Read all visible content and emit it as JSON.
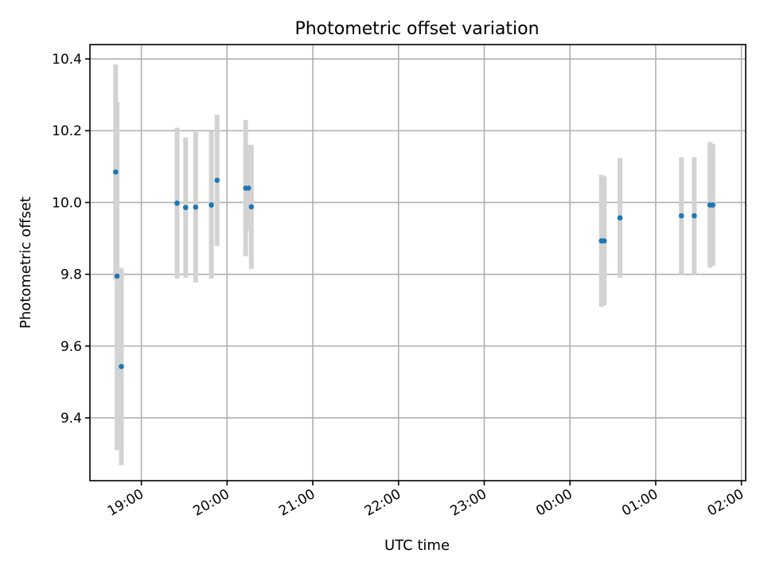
{
  "chart_data": {
    "type": "scatter",
    "title": "Photometric offset variation",
    "xlabel": "UTC time",
    "ylabel": "Photometric offset",
    "grid": true,
    "x_ticks": [
      "19:00",
      "20:00",
      "21:00",
      "22:00",
      "23:00",
      "00:00",
      "01:00",
      "02:00"
    ],
    "y_ticks": [
      "9.4",
      "9.6",
      "9.8",
      "10.0",
      "10.2",
      "10.4"
    ],
    "xlim": [
      "18:24",
      "02:03"
    ],
    "ylim": [
      9.225,
      10.44
    ],
    "colors": {
      "point": "#1f77b4",
      "errorbar": "#d3d3d3"
    },
    "points": [
      {
        "t": "18:42",
        "y": 10.085,
        "err": 0.3
      },
      {
        "t": "18:43",
        "y": 9.795,
        "err": 0.485
      },
      {
        "t": "18:46",
        "y": 9.543,
        "err": 0.275
      },
      {
        "t": "19:25",
        "y": 9.998,
        "err": 0.21
      },
      {
        "t": "19:31",
        "y": 9.986,
        "err": 0.195
      },
      {
        "t": "19:38",
        "y": 9.987,
        "err": 0.21
      },
      {
        "t": "19:49",
        "y": 9.993,
        "err": 0.205
      },
      {
        "t": "19:53",
        "y": 10.062,
        "err": 0.183
      },
      {
        "t": "20:13",
        "y": 10.04,
        "err": 0.19
      },
      {
        "t": "20:15",
        "y": 10.04,
        "err": 0.12
      },
      {
        "t": "20:17",
        "y": 9.988,
        "err": 0.173
      },
      {
        "t": "00:22",
        "y": 9.893,
        "err": 0.184
      },
      {
        "t": "00:24",
        "y": 9.893,
        "err": 0.18
      },
      {
        "t": "00:35",
        "y": 9.957,
        "err": 0.167
      },
      {
        "t": "01:18",
        "y": 9.963,
        "err": 0.163
      },
      {
        "t": "01:27",
        "y": 9.963,
        "err": 0.163
      },
      {
        "t": "01:38",
        "y": 9.993,
        "err": 0.175
      },
      {
        "t": "01:40",
        "y": 9.993,
        "err": 0.17
      }
    ]
  }
}
